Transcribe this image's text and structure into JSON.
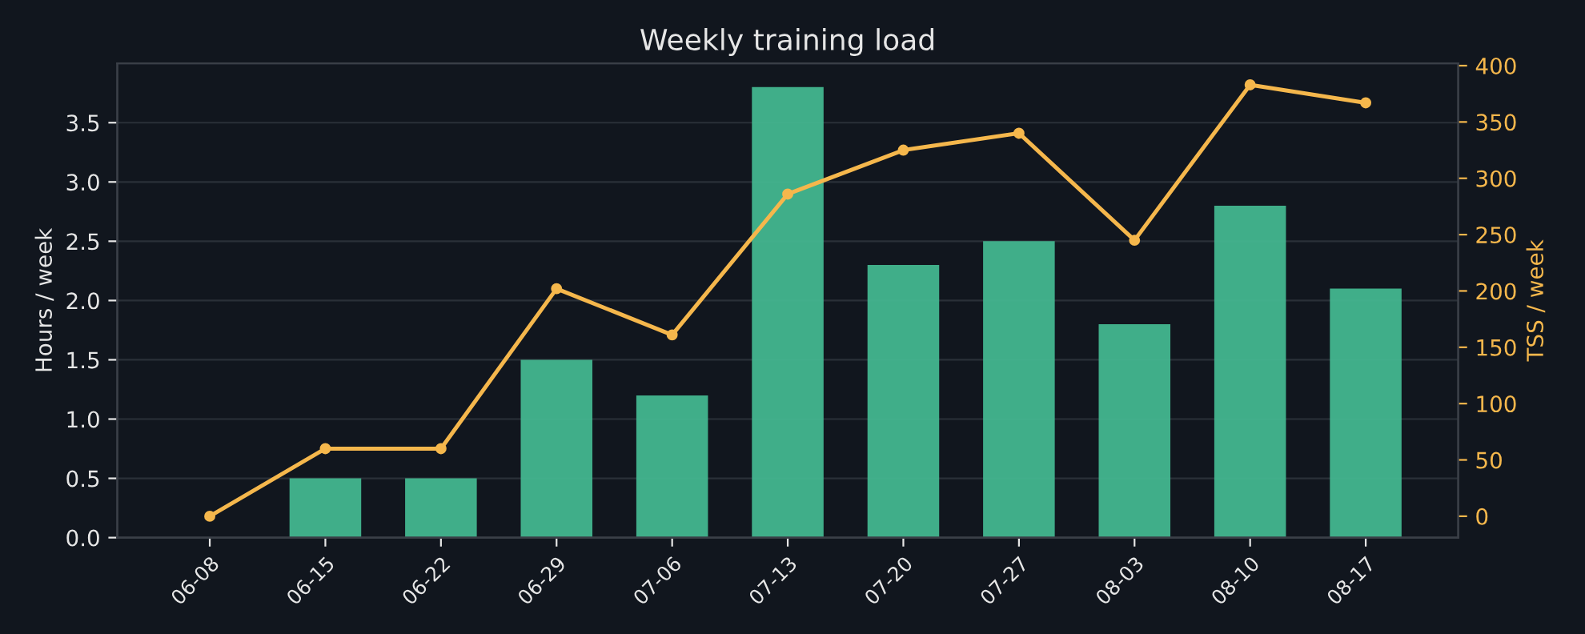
{
  "chart_data": {
    "type": "bar",
    "title": "Weekly training load",
    "ylabel": "Hours / week",
    "y2label": "TSS / week",
    "categories": [
      "06-08",
      "06-15",
      "06-22",
      "06-29",
      "07-06",
      "07-13",
      "07-20",
      "07-27",
      "08-03",
      "08-10",
      "08-17"
    ],
    "series": [
      {
        "color": "#43b68f",
        "values": [
          0,
          0.5,
          0.5,
          1.5,
          1.2,
          3.8,
          2.3,
          2.5,
          1.8,
          2.8,
          2.1
        ]
      },
      {
        "type": "line",
        "axis": "y2",
        "color": "#f5b74c",
        "marker": "circle",
        "line_style": "solid",
        "values": [
          0,
          60,
          60,
          202,
          161,
          286,
          325,
          340,
          245,
          383,
          367
        ]
      }
    ],
    "ylim": [
      0,
      4.0
    ],
    "yticks": [
      {
        "value": 0,
        "label": "0.0"
      },
      {
        "value": 0.5,
        "label": "0.5"
      },
      {
        "value": 1,
        "label": "1.0"
      },
      {
        "value": 1.5,
        "label": "1.5"
      },
      {
        "value": 2,
        "label": "2.0"
      },
      {
        "value": 2.5,
        "label": "2.5"
      },
      {
        "value": 3,
        "label": "3.0"
      },
      {
        "value": 3.5,
        "label": "3.5"
      }
    ],
    "y2lim": [
      -19,
      402
    ],
    "y2ticks": [
      0,
      50,
      100,
      150,
      200,
      250,
      300,
      350,
      400
    ],
    "grid": "y",
    "legend": false
  }
}
